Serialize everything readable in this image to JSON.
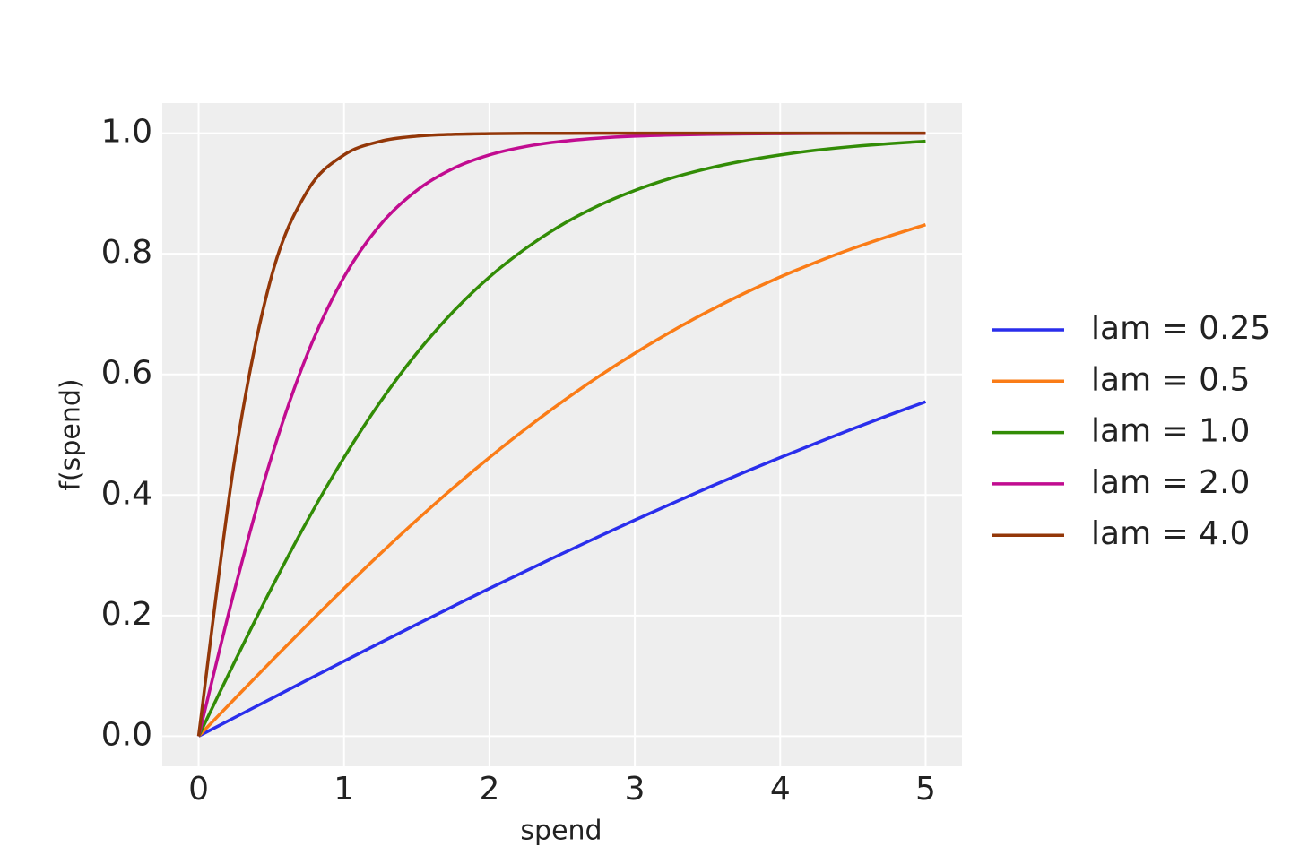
{
  "chart_data": {
    "type": "line",
    "xlabel": "spend",
    "ylabel": "f(spend)",
    "x": [
      0,
      0.25,
      0.5,
      0.75,
      1,
      1.25,
      1.5,
      1.75,
      2,
      2.25,
      2.5,
      2.75,
      3,
      3.25,
      3.5,
      3.75,
      4,
      4.25,
      4.5,
      4.75,
      5
    ],
    "series": [
      {
        "name": "lam = 0.25",
        "color": "#2a2eec",
        "values": [
          0,
          0.0312,
          0.0624,
          0.0935,
          0.1244,
          0.155,
          0.1853,
          0.2153,
          0.2449,
          0.274,
          0.3027,
          0.3308,
          0.3584,
          0.3853,
          0.4117,
          0.4374,
          0.4621,
          0.4863,
          0.5098,
          0.5326,
          0.5546
        ]
      },
      {
        "name": "lam = 0.5",
        "color": "#fa7c17",
        "values": [
          0,
          0.0624,
          0.1244,
          0.1853,
          0.2449,
          0.3027,
          0.3584,
          0.4117,
          0.4621,
          0.5098,
          0.5546,
          0.5963,
          0.6351,
          0.671,
          0.7039,
          0.7341,
          0.7616,
          0.7864,
          0.809,
          0.8294,
          0.8483
        ]
      },
      {
        "name": "lam = 1.0",
        "color": "#328c06",
        "values": [
          0,
          0.1244,
          0.2449,
          0.3584,
          0.4621,
          0.5546,
          0.6351,
          0.7039,
          0.7616,
          0.809,
          0.8483,
          0.8799,
          0.9051,
          0.9254,
          0.9414,
          0.9541,
          0.964,
          0.9719,
          0.978,
          0.9828,
          0.9866
        ]
      },
      {
        "name": "lam = 2.0",
        "color": "#c10c90",
        "values": [
          0,
          0.2449,
          0.4621,
          0.6351,
          0.7616,
          0.8483,
          0.9051,
          0.9414,
          0.964,
          0.978,
          0.9866,
          0.9918,
          0.9951,
          0.997,
          0.9982,
          0.9989,
          0.9993,
          0.9996,
          0.9998,
          0.9999,
          0.9999
        ]
      },
      {
        "name": "lam = 4.0",
        "color": "#933708",
        "values": [
          0,
          0.4621,
          0.7616,
          0.9051,
          0.964,
          0.9866,
          0.9951,
          0.9982,
          0.9993,
          0.9998,
          0.9999,
          1,
          1,
          1,
          1,
          1,
          1,
          1,
          1,
          1,
          1
        ]
      }
    ],
    "xlim": [
      -0.25,
      5.25
    ],
    "xticks": [
      0,
      1,
      2,
      3,
      4,
      5
    ],
    "ylim": [
      -0.05,
      1.05
    ],
    "yticks": [
      {
        "value": 0,
        "label": "0.0"
      },
      0.2,
      0.4,
      0.6,
      0.8,
      {
        "value": 1,
        "label": "1.0"
      }
    ],
    "grid": true,
    "legend": "right"
  }
}
